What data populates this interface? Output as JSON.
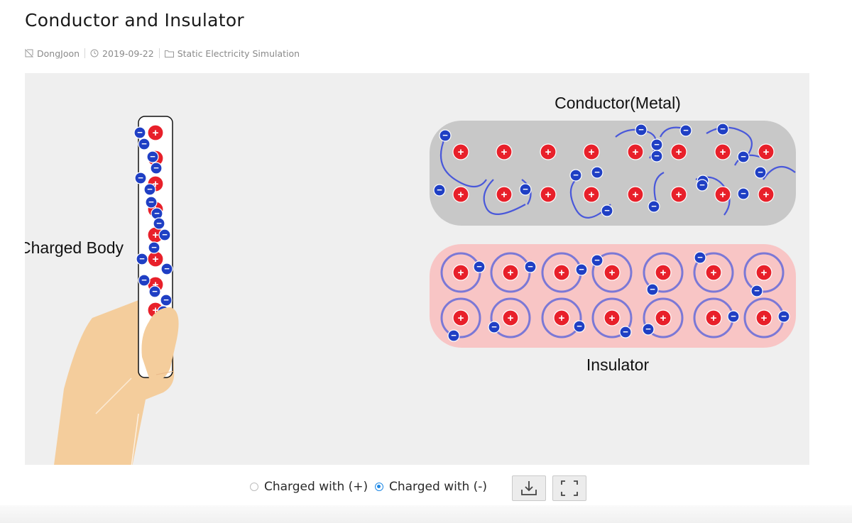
{
  "page": {
    "title": "Conductor and Insulator",
    "meta": {
      "author": "DongJoon",
      "date": "2019-09-22",
      "category": "Static Electricity Simulation"
    }
  },
  "simulation": {
    "charged_body_label": "Charged Body",
    "conductor_label": "Conductor(Metal)",
    "insulator_label": "Insulator",
    "positive_symbol": "+",
    "negative_symbol": "−",
    "colors": {
      "positive": "#e8202a",
      "negative": "#1f3fc4",
      "conductor_fill": "#c8c8c8",
      "insulator_fill": "#f8c5c5",
      "background": "#efefef",
      "skin": "#f4cd9c"
    }
  },
  "controls": {
    "options": [
      {
        "label": "Charged with (+)",
        "selected": false
      },
      {
        "label": "Charged with (-)",
        "selected": true
      }
    ],
    "download_icon": "download-icon",
    "fullscreen_icon": "fullscreen-icon"
  }
}
